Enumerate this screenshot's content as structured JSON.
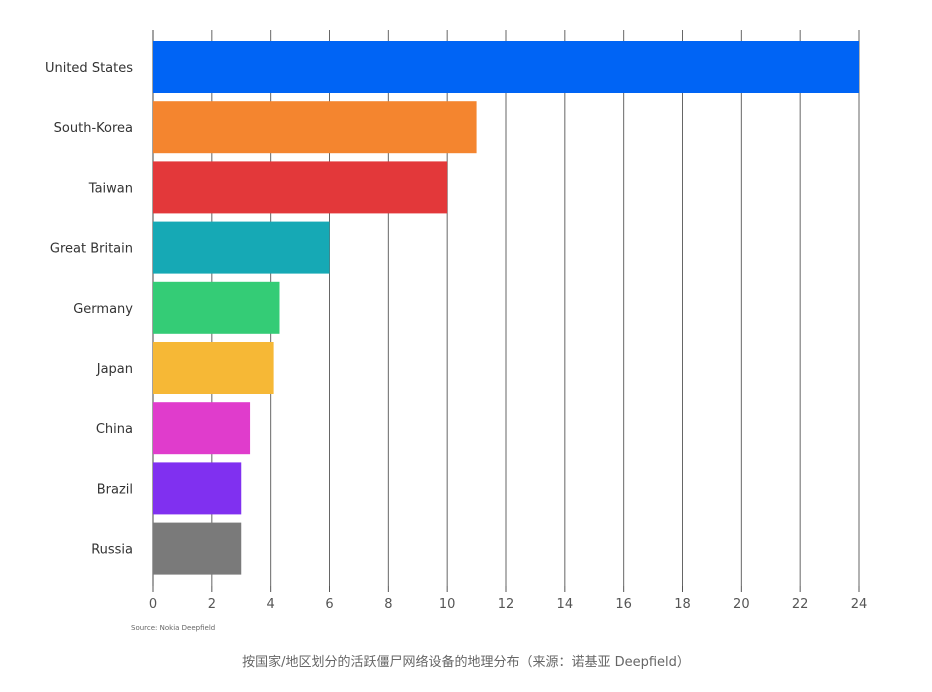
{
  "chart_data": {
    "type": "bar",
    "orientation": "horizontal",
    "categories": [
      "United States",
      "South-Korea",
      "Taiwan",
      "Great Britain",
      "Germany",
      "Japan",
      "China",
      "Brazil",
      "Russia"
    ],
    "values": [
      24,
      11,
      10,
      6,
      4.3,
      4.1,
      3.3,
      3,
      3
    ],
    "colors": [
      "#0064f5",
      "#f4852f",
      "#e3383a",
      "#16a9b5",
      "#34cc76",
      "#f6b836",
      "#e03ccc",
      "#8030f0",
      "#7a7a7a"
    ],
    "xlim": [
      0,
      24
    ],
    "xticks": [
      0,
      2,
      4,
      6,
      8,
      10,
      12,
      14,
      16,
      18,
      20,
      22,
      24
    ],
    "grid": "vertical",
    "title": "",
    "xlabel": "",
    "ylabel": ""
  },
  "source": "Source: Nokia Deepfield",
  "caption": "按国家/地区划分的活跃僵尸网络设备的地理分布（来源：诺基亚 Deepfield）"
}
